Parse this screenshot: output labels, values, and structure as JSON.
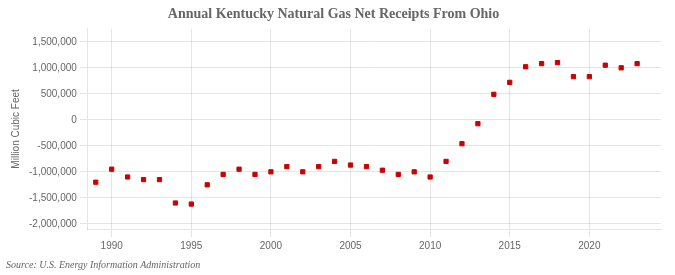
{
  "chart_data": {
    "type": "scatter",
    "title": "Annual Kentucky Natural Gas Net Receipts From Ohio",
    "y_label": "Million Cubic Feet",
    "annotations": [
      "Source: U.S. Energy Information Administration"
    ],
    "x": [
      1989,
      1990,
      1991,
      1992,
      1993,
      1994,
      1995,
      1996,
      1997,
      1998,
      1999,
      2000,
      2001,
      2002,
      2003,
      2004,
      2005,
      2006,
      2007,
      2008,
      2009,
      2010,
      2011,
      2012,
      2013,
      2014,
      2015,
      2016,
      2017,
      2018,
      2019,
      2020,
      2021,
      2022,
      2023
    ],
    "values": [
      -1200000,
      -950000,
      -1100000,
      -1150000,
      -1150000,
      -1600000,
      -1620000,
      -1250000,
      -1050000,
      -950000,
      -1050000,
      -1000000,
      -900000,
      -1000000,
      -900000,
      -800000,
      -870000,
      -900000,
      -970000,
      -1050000,
      -1000000,
      -1100000,
      -800000,
      -460000,
      -75000,
      490000,
      720000,
      1020000,
      1080000,
      1100000,
      830000,
      830000,
      1050000,
      1000000,
      1080000
    ],
    "color": "#cc0000",
    "marker": "square",
    "xlim": [
      1988.5,
      2024.5
    ],
    "xticks": [
      1990,
      1995,
      2000,
      2005,
      2010,
      2015,
      2020
    ],
    "ylim": [
      -2100000,
      1750000
    ],
    "yticks": [
      {
        "value": -2000000,
        "label": "-2,000,000"
      },
      {
        "value": -1500000,
        "label": "-1,500,000"
      },
      {
        "value": -1000000,
        "label": "-1,000,000"
      },
      {
        "value": -500000,
        "label": "-500,000"
      },
      0,
      {
        "value": 500000,
        "label": "500,000"
      },
      {
        "value": 1000000,
        "label": "1,000,000"
      },
      {
        "value": 1500000,
        "label": "1,500,000"
      }
    ],
    "grid": true
  }
}
